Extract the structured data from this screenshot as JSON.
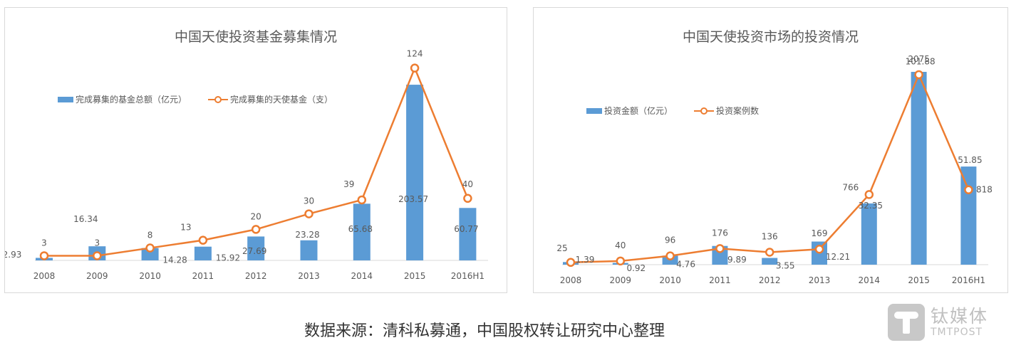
{
  "charts": [
    {
      "title": "中国天使投资基金募集情况",
      "legend": [
        "完成募集的基金总额（亿元）",
        "完成募集的天使基金（支）"
      ]
    },
    {
      "title": "中国天使投资市场的投资情况",
      "legend": [
        "投资金额（亿元）",
        "投资案例数"
      ]
    }
  ],
  "footer": {
    "source": "数据来源：清科私募通，中国股权转让研究中心整理",
    "logo_cn": "钛媒体",
    "logo_en": "TMTPOST"
  },
  "colors": {
    "bar": "#5b9bd5",
    "line": "#ed7d31",
    "text": "#595959",
    "axis": "#d9d9d9"
  },
  "chart_data": [
    {
      "type": "bar",
      "title": "中国天使投资基金募集情况",
      "categories": [
        "2008",
        "2009",
        "2010",
        "2011",
        "2012",
        "2013",
        "2014",
        "2015",
        "2016H1"
      ],
      "series": [
        {
          "name": "完成募集的基金总额（亿元）",
          "kind": "bar",
          "values": [
            2.93,
            16.34,
            14.28,
            15.92,
            27.69,
            23.28,
            65.68,
            203.57,
            60.77
          ]
        },
        {
          "name": "完成募集的天使基金（支）",
          "kind": "line",
          "values": [
            3,
            3,
            8,
            13,
            20,
            30,
            39,
            124,
            40
          ]
        }
      ],
      "xlabel": "",
      "ylabel": "",
      "grid": false,
      "legend_position": "top-left"
    },
    {
      "type": "bar",
      "title": "中国天使投资市场的投资情况",
      "categories": [
        "2008",
        "2009",
        "2010",
        "2011",
        "2012",
        "2013",
        "2014",
        "2015",
        "2016H1"
      ],
      "series": [
        {
          "name": "投资金额（亿元）",
          "kind": "bar",
          "values": [
            1.39,
            0.92,
            4.76,
            9.89,
            3.55,
            12.21,
            32.35,
            101.88,
            51.85
          ]
        },
        {
          "name": "投资案例数",
          "kind": "line",
          "values": [
            25,
            40,
            96,
            176,
            136,
            169,
            766,
            2075,
            818
          ]
        }
      ],
      "xlabel": "",
      "ylabel": "",
      "grid": false,
      "legend_position": "top-left"
    }
  ]
}
